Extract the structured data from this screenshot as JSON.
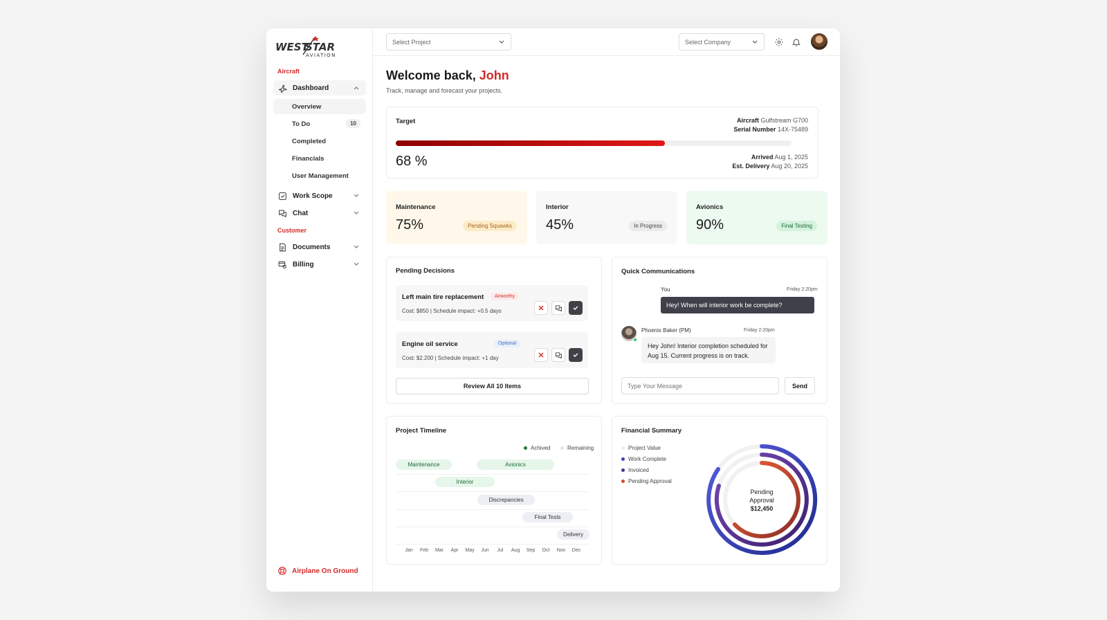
{
  "brand": {
    "line1": "WEST",
    "line2": "STAR",
    "line3": "AVIATION"
  },
  "sidebar": {
    "section_aircraft": "Aircraft",
    "section_customer": "Customer",
    "dashboard": "Dashboard",
    "subitems": [
      {
        "label": "Overview"
      },
      {
        "label": "To Do",
        "count": "10"
      },
      {
        "label": "Completed"
      },
      {
        "label": "Financials"
      },
      {
        "label": "User Management"
      }
    ],
    "work_scope": "Work Scope",
    "chat": "Chat",
    "documents": "Documents",
    "billing": "Billing",
    "aog": "Airplane On Ground"
  },
  "topbar": {
    "project_placeholder": "Select Project",
    "company_placeholder": "Select Company"
  },
  "welcome": {
    "prefix": "Welcome back,",
    "name": "John",
    "subtitle": "Track, manage and forecast your projects."
  },
  "target": {
    "label": "Target",
    "percent_text": "68 %",
    "progress": 0.68,
    "aircraft_label": "Aircraft",
    "aircraft_value": "Gulfstream G700",
    "serial_label": "Serial Number",
    "serial_value": "14X-75489",
    "arrived_label": "Arrived",
    "arrived_value": "Aug 1, 2025",
    "delivery_label": "Est. Delivery",
    "delivery_value": "Aug 20, 2025"
  },
  "stats": [
    {
      "label": "Maintenance",
      "value": "75%",
      "tag": "Pending Squawks",
      "bg": "#fff8ea",
      "tag_bg": "#fdebc8",
      "tag_color": "#a8661b"
    },
    {
      "label": "Interior",
      "value": "45%",
      "tag": "In Progress",
      "bg": "#f8f8f8",
      "tag_bg": "#ebebeb",
      "tag_color": "#444"
    },
    {
      "label": "Avionics",
      "value": "90%",
      "tag": "Final Testing",
      "bg": "#ecfaf0",
      "tag_bg": "#d4f2de",
      "tag_color": "#1c6b34"
    }
  ],
  "decisions": {
    "title": "Pending Decisions",
    "items": [
      {
        "title": "Left main tire replacement",
        "tag": "Airworthy",
        "detail": "Cost: $850 | Schedule impact: +0.5 days"
      },
      {
        "title": "Engine oil service",
        "tag": "Optional",
        "detail": "Cost: $2.200 | Schedule impact: +1 day"
      }
    ],
    "review": "Review All 10 Items"
  },
  "comms": {
    "title": "Quick Communications",
    "out_name": "You",
    "out_time": "Friday 2:20pm",
    "out_text": "Hey! When will interior work be complete?",
    "in_name": "Phoenix Baker (PM)",
    "in_time": "Friday 2:20pm",
    "in_text": "Hey John! Interior completion scheduled for Aug 15. Current progress is on track.",
    "input_placeholder": "Type Your Message",
    "send": "Send"
  },
  "timeline": {
    "title": "Project Timeline",
    "legend": [
      "Achived",
      "Remaining"
    ],
    "months": [
      "Jan",
      "Feb",
      "Mar",
      "Apr",
      "May",
      "Jun",
      "Jul",
      "Aug",
      "Sep",
      "Oct",
      "Nov",
      "Dec"
    ],
    "bars": [
      {
        "label": "Maintenance",
        "status": "achieved"
      },
      {
        "label": "Avionics",
        "status": "achieved"
      },
      {
        "label": "Interior",
        "status": "achieved"
      },
      {
        "label": "Discrepancies",
        "status": "remaining"
      },
      {
        "label": "Final Tests",
        "status": "remaining"
      },
      {
        "label": "Delivery",
        "status": "remaining"
      }
    ]
  },
  "financial": {
    "title": "Financial Summary",
    "legend": [
      {
        "label": "Project Value",
        "color": "#eeeeee"
      },
      {
        "label": "Work Complete",
        "color": "#3b3fb8"
      },
      {
        "label": "Invoiced",
        "color": "#4b2f8a"
      },
      {
        "label": "Pending Approval",
        "color": "#d9472b"
      }
    ],
    "center_line1": "Pending",
    "center_line2": "Approval",
    "center_value": "$12,450"
  }
}
